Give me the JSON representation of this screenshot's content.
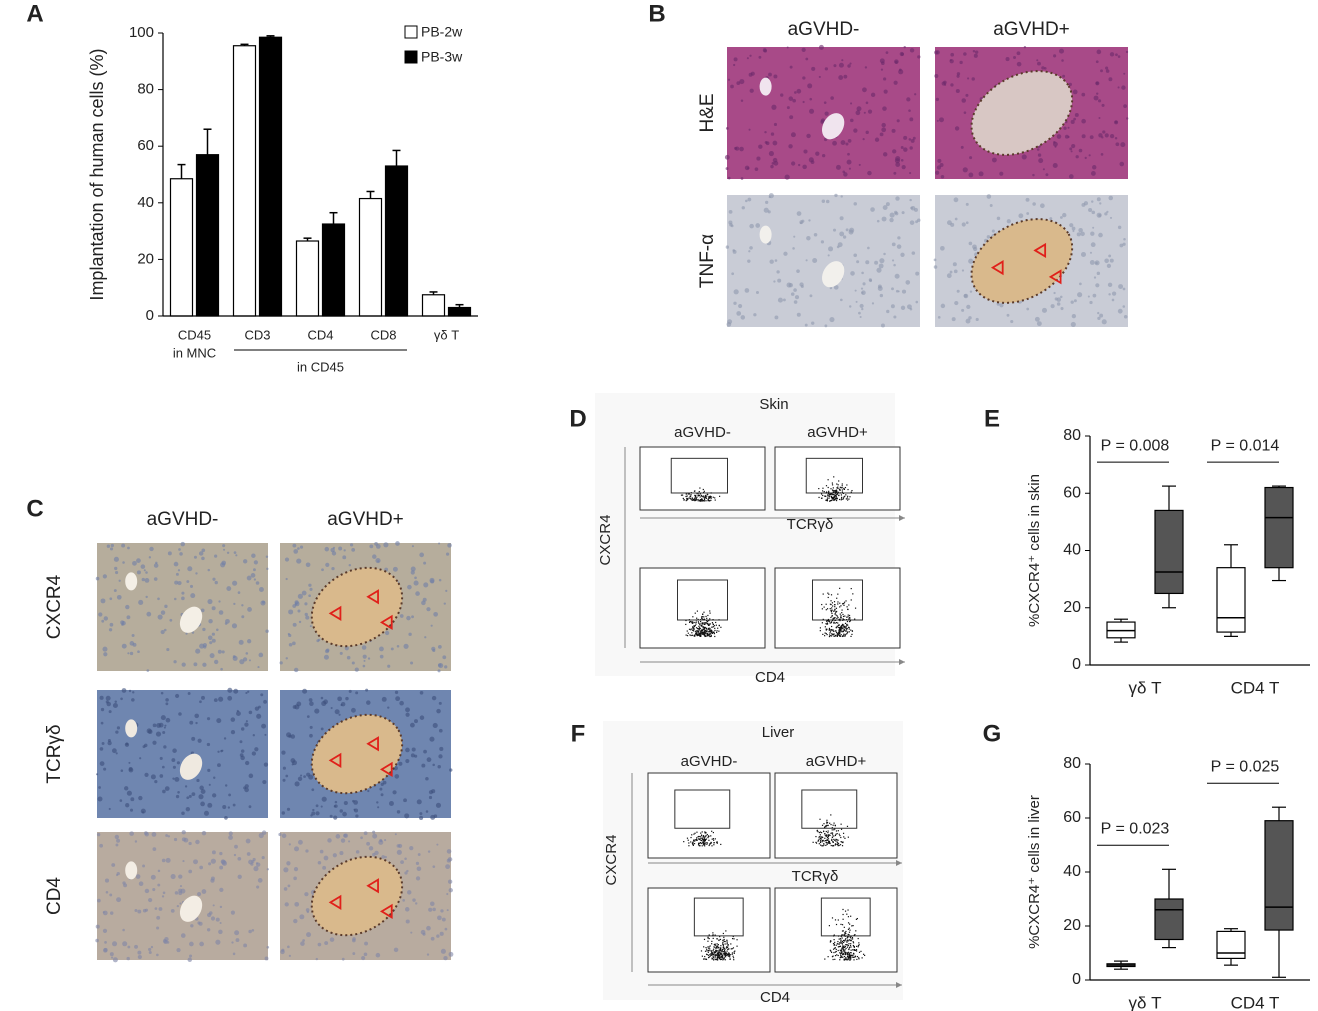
{
  "chart_data": [
    {
      "panel": "A",
      "type": "bar",
      "ylabel": "Implantation of human cells (%)",
      "categories": [
        "CD45",
        "CD3",
        "CD4",
        "CD8",
        "γδ T"
      ],
      "groups": [
        {
          "label": "in MNC",
          "members": [
            "CD45"
          ]
        },
        {
          "label": "in CD45",
          "members": [
            "CD3",
            "CD4",
            "CD8"
          ]
        }
      ],
      "series": [
        {
          "name": "PB-2w",
          "color": "#ffffff",
          "values": [
            48.5,
            95.5,
            26.5,
            41.5,
            7.5
          ],
          "errors": [
            5,
            0.5,
            1,
            2.5,
            1
          ]
        },
        {
          "name": "PB-3w",
          "color": "#000000",
          "values": [
            57,
            98.5,
            32.5,
            53,
            3
          ],
          "errors": [
            9,
            0.5,
            4,
            5.5,
            1
          ]
        }
      ],
      "ylim": [
        0,
        100
      ],
      "yticks": [
        0,
        20,
        40,
        60,
        80,
        100
      ],
      "legend": "top-right"
    },
    {
      "panel": "E",
      "type": "box",
      "ylabel": "%CXCR4⁺ cells in skin",
      "categories": [
        "γδ T",
        "CD4 T"
      ],
      "annotations": [
        "P = 0.008",
        "P = 0.014"
      ],
      "series": [
        {
          "color": "#ffffff",
          "values": [
            {
              "min": 8,
              "q1": 9.5,
              "median": 12,
              "q3": 15,
              "max": 16
            },
            {
              "min": 10,
              "q1": 11.5,
              "median": 16.5,
              "q3": 34,
              "max": 42
            }
          ]
        },
        {
          "color": "#555555",
          "values": [
            {
              "min": 20,
              "q1": 25,
              "median": 32.5,
              "q3": 54,
              "max": 62.5
            },
            {
              "min": 29.5,
              "q1": 34,
              "median": 51.5,
              "q3": 62,
              "max": 62.5
            }
          ]
        }
      ],
      "ylim": [
        0,
        80
      ],
      "yticks": [
        0,
        20,
        40,
        60,
        80
      ]
    },
    {
      "panel": "G",
      "type": "box",
      "ylabel": "%CXCR4⁺ cells in liver",
      "categories": [
        "γδ T",
        "CD4 T"
      ],
      "annotations": [
        "P = 0.023",
        "P = 0.025"
      ],
      "series": [
        {
          "color": "#ffffff",
          "values": [
            {
              "min": 4,
              "q1": 5,
              "median": 5.5,
              "q3": 6,
              "max": 7
            },
            {
              "min": 5.5,
              "q1": 8,
              "median": 10,
              "q3": 18,
              "max": 19
            }
          ]
        },
        {
          "color": "#555555",
          "values": [
            {
              "min": 12,
              "q1": 15,
              "median": 26,
              "q3": 30,
              "max": 41
            },
            {
              "min": 1,
              "q1": 18.5,
              "median": 27,
              "q3": 59,
              "max": 64
            }
          ]
        }
      ],
      "ylim": [
        0,
        80
      ],
      "yticks": [
        0,
        20,
        40,
        60,
        80
      ]
    }
  ],
  "histology": [
    {
      "panel": "B",
      "columns": [
        "aGVHD-",
        "aGVHD+"
      ],
      "rows": [
        "H&E",
        "TNF-α"
      ]
    },
    {
      "panel": "C",
      "columns": [
        "aGVHD-",
        "aGVHD+"
      ],
      "rows": [
        "CXCR4",
        "TCRγδ",
        "CD4"
      ]
    }
  ],
  "flow": [
    {
      "panel": "D",
      "tissue": "Skin",
      "columns": [
        "aGVHD-",
        "aGVHD+"
      ],
      "y_label": "CXCR4",
      "x_labels": [
        "TCRγδ",
        "CD4"
      ]
    },
    {
      "panel": "F",
      "tissue": "Liver",
      "columns": [
        "aGVHD-",
        "aGVHD+"
      ],
      "y_label": "CXCR4",
      "x_labels": [
        "TCRγδ",
        "CD4"
      ]
    }
  ]
}
